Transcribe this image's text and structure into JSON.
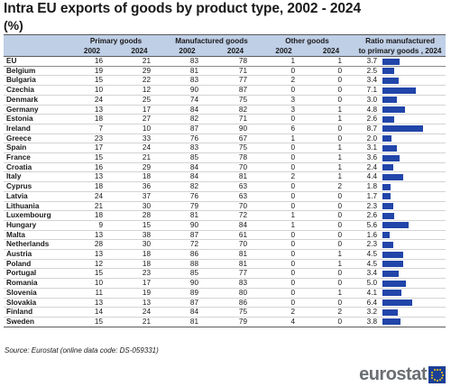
{
  "title": "Intra EU exports of goods by product type, 2002 - 2024",
  "unit": "(%)",
  "headers": {
    "primary": "Primary goods",
    "manufactured": "Manufactured goods",
    "other": "Other goods",
    "ratio_line1": "Ratio manufactured",
    "ratio_line2": "to primary goods , 2024",
    "year1": "2002",
    "year2": "2024"
  },
  "rows": [
    {
      "country": "EU",
      "p02": "16",
      "p24": "21",
      "m02": "83",
      "m24": "78",
      "o02": "1",
      "o24": "1",
      "ratio": "3.7",
      "ratio_value": 3.7
    },
    {
      "country": "Belgium",
      "p02": "19",
      "p24": "29",
      "m02": "81",
      "m24": "71",
      "o02": "0",
      "o24": "0",
      "ratio": "2.5",
      "ratio_value": 2.5
    },
    {
      "country": "Bulgaria",
      "p02": "15",
      "p24": "22",
      "m02": "83",
      "m24": "77",
      "o02": "2",
      "o24": "0",
      "ratio": "3.4",
      "ratio_value": 3.4
    },
    {
      "country": "Czechia",
      "p02": "10",
      "p24": "12",
      "m02": "90",
      "m24": "87",
      "o02": "0",
      "o24": "0",
      "ratio": "7.1",
      "ratio_value": 7.1
    },
    {
      "country": "Denmark",
      "p02": "24",
      "p24": "25",
      "m02": "74",
      "m24": "75",
      "o02": "3",
      "o24": "0",
      "ratio": "3.0",
      "ratio_value": 3.0
    },
    {
      "country": "Germany",
      "p02": "13",
      "p24": "17",
      "m02": "84",
      "m24": "82",
      "o02": "3",
      "o24": "1",
      "ratio": "4.8",
      "ratio_value": 4.8
    },
    {
      "country": "Estonia",
      "p02": "18",
      "p24": "27",
      "m02": "82",
      "m24": "71",
      "o02": "0",
      "o24": "1",
      "ratio": "2.6",
      "ratio_value": 2.6
    },
    {
      "country": "Ireland",
      "p02": "7",
      "p24": "10",
      "m02": "87",
      "m24": "90",
      "o02": "6",
      "o24": "0",
      "ratio": "8.7",
      "ratio_value": 8.7
    },
    {
      "country": "Greece",
      "p02": "23",
      "p24": "33",
      "m02": "76",
      "m24": "67",
      "o02": "1",
      "o24": "0",
      "ratio": "2.0",
      "ratio_value": 2.0
    },
    {
      "country": "Spain",
      "p02": "17",
      "p24": "24",
      "m02": "83",
      "m24": "75",
      "o02": "0",
      "o24": "1",
      "ratio": "3.1",
      "ratio_value": 3.1
    },
    {
      "country": "France",
      "p02": "15",
      "p24": "21",
      "m02": "85",
      "m24": "78",
      "o02": "0",
      "o24": "1",
      "ratio": "3.6",
      "ratio_value": 3.6
    },
    {
      "country": "Croatia",
      "p02": "16",
      "p24": "29",
      "m02": "84",
      "m24": "70",
      "o02": "0",
      "o24": "1",
      "ratio": "2.4",
      "ratio_value": 2.4
    },
    {
      "country": "Italy",
      "p02": "13",
      "p24": "18",
      "m02": "84",
      "m24": "81",
      "o02": "2",
      "o24": "1",
      "ratio": "4.4",
      "ratio_value": 4.4
    },
    {
      "country": "Cyprus",
      "p02": "18",
      "p24": "36",
      "m02": "82",
      "m24": "63",
      "o02": "0",
      "o24": "2",
      "ratio": "1.8",
      "ratio_value": 1.8
    },
    {
      "country": "Latvia",
      "p02": "24",
      "p24": "37",
      "m02": "76",
      "m24": "63",
      "o02": "0",
      "o24": "0",
      "ratio": "1.7",
      "ratio_value": 1.7
    },
    {
      "country": "Lithuania",
      "p02": "21",
      "p24": "30",
      "m02": "79",
      "m24": "70",
      "o02": "0",
      "o24": "0",
      "ratio": "2.3",
      "ratio_value": 2.3
    },
    {
      "country": "Luxembourg",
      "p02": "18",
      "p24": "28",
      "m02": "81",
      "m24": "72",
      "o02": "1",
      "o24": "0",
      "ratio": "2.6",
      "ratio_value": 2.6
    },
    {
      "country": "Hungary",
      "p02": "9",
      "p24": "15",
      "m02": "90",
      "m24": "84",
      "o02": "1",
      "o24": "0",
      "ratio": "5.6",
      "ratio_value": 5.6
    },
    {
      "country": "Malta",
      "p02": "13",
      "p24": "38",
      "m02": "87",
      "m24": "61",
      "o02": "0",
      "o24": "0",
      "ratio": "1.6",
      "ratio_value": 1.6
    },
    {
      "country": "Netherlands",
      "p02": "28",
      "p24": "30",
      "m02": "72",
      "m24": "70",
      "o02": "0",
      "o24": "0",
      "ratio": "2.3",
      "ratio_value": 2.3
    },
    {
      "country": "Austria",
      "p02": "13",
      "p24": "18",
      "m02": "86",
      "m24": "81",
      "o02": "0",
      "o24": "1",
      "ratio": "4.5",
      "ratio_value": 4.5
    },
    {
      "country": "Poland",
      "p02": "12",
      "p24": "18",
      "m02": "88",
      "m24": "81",
      "o02": "0",
      "o24": "1",
      "ratio": "4.5",
      "ratio_value": 4.5
    },
    {
      "country": "Portugal",
      "p02": "15",
      "p24": "23",
      "m02": "85",
      "m24": "77",
      "o02": "0",
      "o24": "0",
      "ratio": "3.4",
      "ratio_value": 3.4
    },
    {
      "country": "Romania",
      "p02": "10",
      "p24": "17",
      "m02": "90",
      "m24": "83",
      "o02": "0",
      "o24": "0",
      "ratio": "5.0",
      "ratio_value": 5.0
    },
    {
      "country": "Slovenia",
      "p02": "11",
      "p24": "19",
      "m02": "89",
      "m24": "80",
      "o02": "0",
      "o24": "1",
      "ratio": "4.1",
      "ratio_value": 4.1
    },
    {
      "country": "Slovakia",
      "p02": "13",
      "p24": "13",
      "m02": "87",
      "m24": "86",
      "o02": "0",
      "o24": "0",
      "ratio": "6.4",
      "ratio_value": 6.4
    },
    {
      "country": "Finland",
      "p02": "14",
      "p24": "24",
      "m02": "84",
      "m24": "75",
      "o02": "2",
      "o24": "2",
      "ratio": "3.2",
      "ratio_value": 3.2
    },
    {
      "country": "Sweden",
      "p02": "15",
      "p24": "21",
      "m02": "81",
      "m24": "79",
      "o02": "4",
      "o24": "0",
      "ratio": "3.8",
      "ratio_value": 3.8
    }
  ],
  "ratio_scale_max": 8.7,
  "bar_color": "#2145a9",
  "header_color": "#bfcfe6",
  "source": "Source:  Eurostat (online data code: DS-059331)",
  "logo": {
    "text": "eurostat",
    "icon": "eu-flag-icon"
  }
}
